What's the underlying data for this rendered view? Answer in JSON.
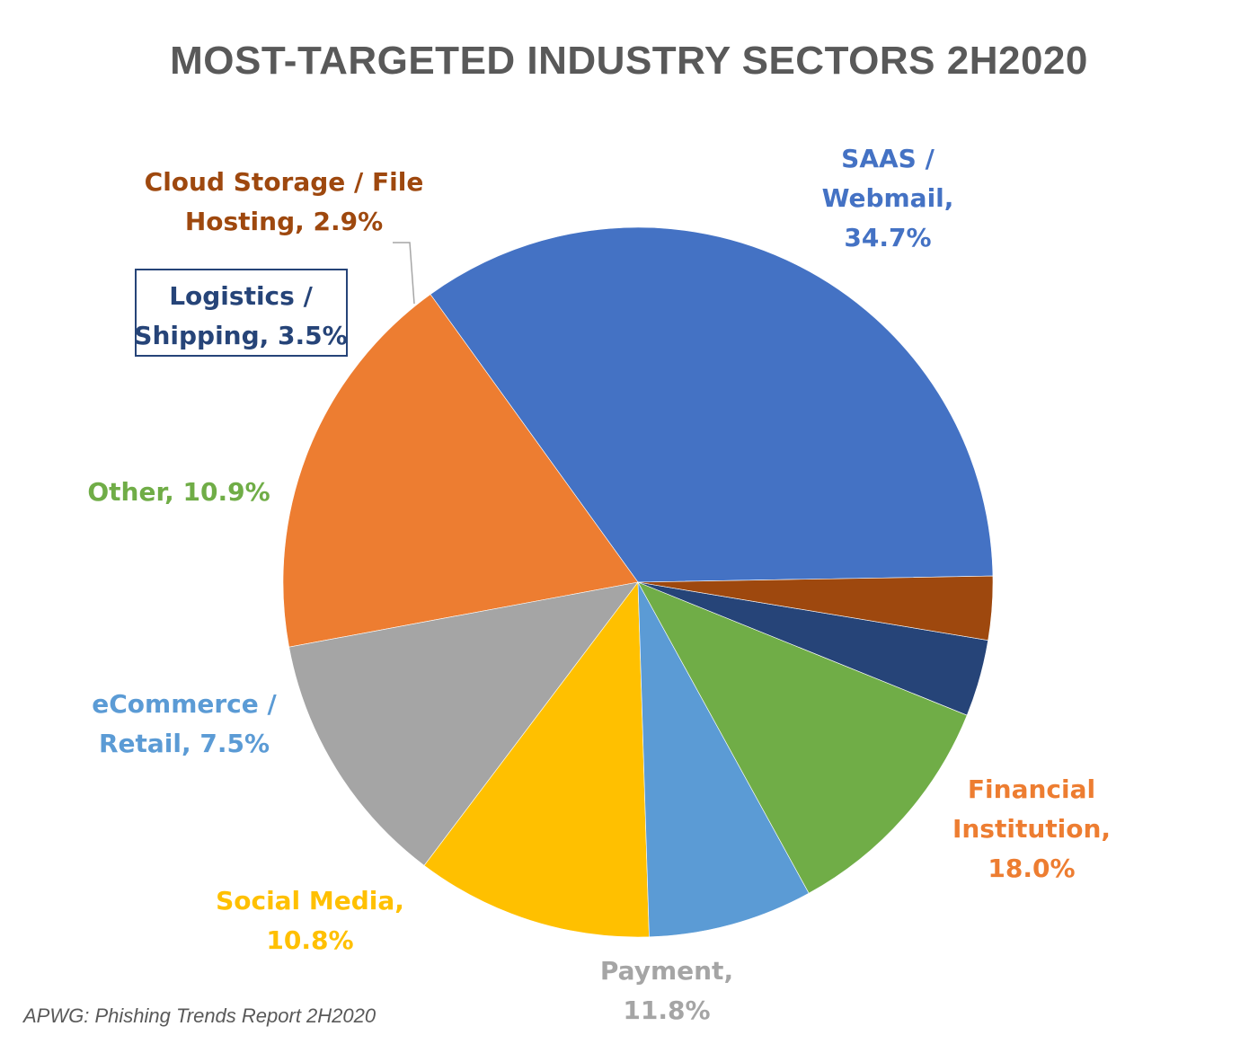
{
  "chart_data": {
    "type": "pie",
    "title": "MOST-TARGETED INDUSTRY SECTORS 2H2020",
    "source_note": "APWG: Phishing Trends Report 2H2020",
    "slices": [
      {
        "name": "SAAS / Webmail",
        "value": 34.7,
        "color": "#4472C4",
        "label_color": "#4472C4",
        "label_lines": [
          "SAAS /",
          "Webmail,",
          "34.7%"
        ]
      },
      {
        "name": "Financial Institution",
        "value": 18.0,
        "color": "#ED7D31",
        "label_color": "#ED7D31",
        "label_lines": [
          "Financial",
          "Institution,",
          "18.0%"
        ]
      },
      {
        "name": "Payment",
        "value": 11.8,
        "color": "#A5A5A5",
        "label_color": "#A5A5A5",
        "label_lines": [
          "Payment,",
          "11.8%"
        ]
      },
      {
        "name": "Social Media",
        "value": 10.8,
        "color": "#FFC000",
        "label_color": "#FFC000",
        "label_lines": [
          "Social Media,",
          "10.8%"
        ]
      },
      {
        "name": "eCommerce / Retail",
        "value": 7.5,
        "color": "#5B9BD5",
        "label_color": "#5B9BD5",
        "label_lines": [
          "eCommerce /",
          "Retail, 7.5%"
        ]
      },
      {
        "name": "Other",
        "value": 10.9,
        "color": "#70AD47",
        "label_color": "#70AD47",
        "label_lines": [
          "Other, 10.9%"
        ]
      },
      {
        "name": "Logistics / Shipping",
        "value": 3.5,
        "color": "#264478",
        "label_color": "#264478",
        "label_lines": [
          "Logistics /",
          "Shipping, 3.5%"
        ],
        "boxed": true
      },
      {
        "name": "Cloud Storage / File Hosting",
        "value": 2.9,
        "color": "#9E480E",
        "label_color": "#9E480E",
        "label_lines": [
          "Cloud Storage / File",
          "Hosting, 2.9%"
        ],
        "leader_line": true
      }
    ]
  }
}
